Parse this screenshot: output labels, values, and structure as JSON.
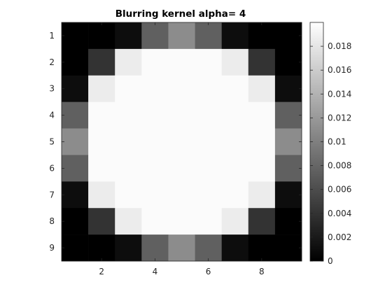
{
  "chart_data": {
    "type": "heatmap",
    "title": "Blurring kernel alpha= 4",
    "colormap": "gray",
    "x_ticks": [
      2,
      4,
      6,
      8
    ],
    "y_ticks": [
      1,
      2,
      3,
      4,
      5,
      6,
      7,
      8,
      9
    ],
    "xlim": [
      0.5,
      9.5
    ],
    "ylim": [
      0.5,
      9.5
    ],
    "color_range": [
      0,
      0.02
    ],
    "colorbar_ticks": [
      0,
      0.002,
      0.004,
      0.006,
      0.008,
      0.01,
      0.012,
      0.014,
      0.016,
      0.018
    ],
    "colorbar_tick_labels": [
      "0",
      "0.002",
      "0.004",
      "0.006",
      "0.008",
      "0.01",
      "0.012",
      "0.014",
      "0.016",
      "0.018"
    ],
    "values": [
      [
        0.0,
        0.0,
        0.001,
        0.0075,
        0.011,
        0.0075,
        0.001,
        0.0,
        0.0
      ],
      [
        0.0,
        0.004,
        0.0185,
        0.0197,
        0.0197,
        0.0197,
        0.0185,
        0.004,
        0.0
      ],
      [
        0.001,
        0.0185,
        0.0197,
        0.0197,
        0.0197,
        0.0197,
        0.0197,
        0.0185,
        0.001
      ],
      [
        0.0075,
        0.0197,
        0.0197,
        0.0197,
        0.0197,
        0.0197,
        0.0197,
        0.0197,
        0.0075
      ],
      [
        0.011,
        0.0197,
        0.0197,
        0.0197,
        0.0197,
        0.0197,
        0.0197,
        0.0197,
        0.011
      ],
      [
        0.0075,
        0.0197,
        0.0197,
        0.0197,
        0.0197,
        0.0197,
        0.0197,
        0.0197,
        0.0075
      ],
      [
        0.001,
        0.0185,
        0.0197,
        0.0197,
        0.0197,
        0.0197,
        0.0197,
        0.0185,
        0.001
      ],
      [
        0.0,
        0.004,
        0.0185,
        0.0197,
        0.0197,
        0.0197,
        0.0185,
        0.004,
        0.0
      ],
      [
        0.0,
        0.0,
        0.001,
        0.0075,
        0.011,
        0.0075,
        0.001,
        0.0,
        0.0
      ]
    ]
  }
}
